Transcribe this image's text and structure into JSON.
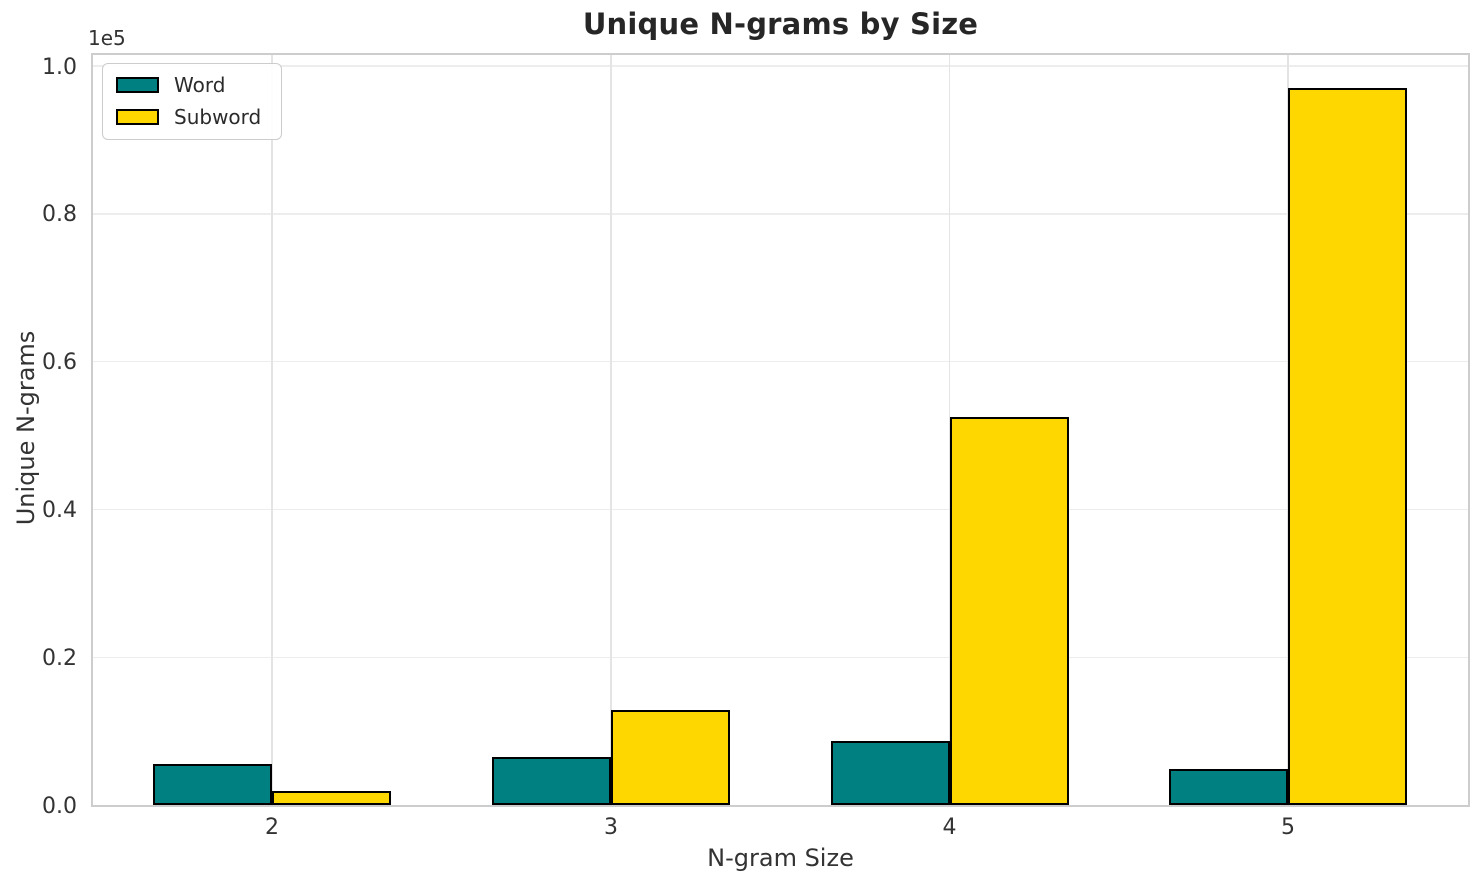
{
  "chart_data": {
    "type": "bar",
    "title": "Unique N-grams by Size",
    "xlabel": "N-gram Size",
    "ylabel": "Unique N-grams",
    "offset_text": "1e5",
    "categories": [
      "2",
      "3",
      "4",
      "5"
    ],
    "series": [
      {
        "name": "Word",
        "color": "#008080",
        "values": [
          5600,
          6500,
          8700,
          4900
        ]
      },
      {
        "name": "Subword",
        "color": "#FFD700",
        "values": [
          1900,
          12800,
          52500,
          97000
        ]
      }
    ],
    "ylim": [
      0,
      100000
    ],
    "ytick_labels": [
      "0.0",
      "0.2",
      "0.4",
      "0.6",
      "0.8",
      "1.0"
    ],
    "ytick_values": [
      0,
      20000,
      40000,
      60000,
      80000,
      100000
    ],
    "grid": true,
    "legend_position": "upper left",
    "bar_edge_color": "#000000",
    "spine_color": "#cdcdcd"
  }
}
